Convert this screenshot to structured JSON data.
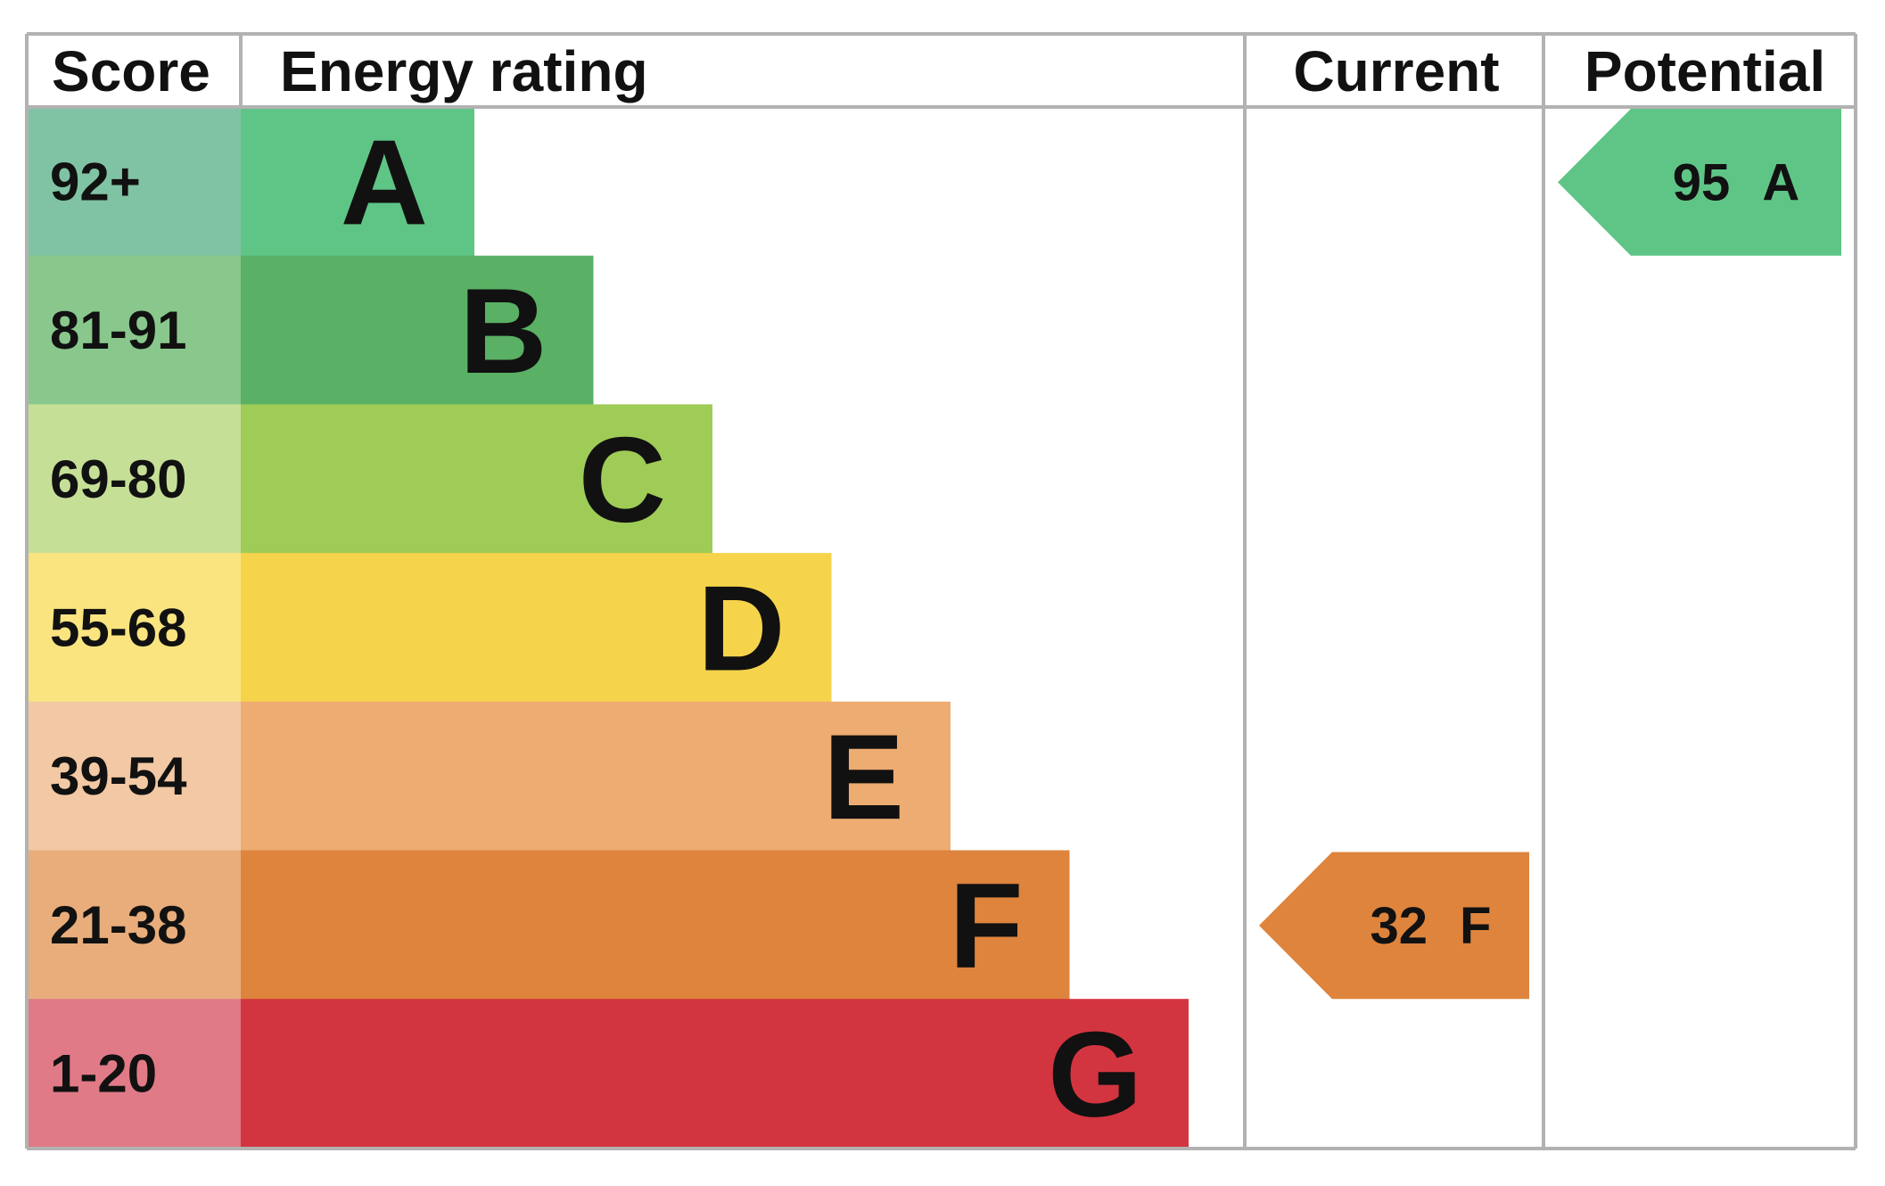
{
  "header": {
    "score": "Score",
    "energy_rating": "Energy rating",
    "current": "Current",
    "potential": "Potential"
  },
  "chart_data": {
    "type": "bar",
    "categories": [
      "A",
      "B",
      "C",
      "D",
      "E",
      "F",
      "G"
    ],
    "bands": [
      {
        "score": "92+",
        "letter": "A",
        "color": "#5fc587",
        "score_color": "#80c3a4"
      },
      {
        "score": "81-91",
        "letter": "B",
        "color": "#5ab064",
        "score_color": "#89c78d"
      },
      {
        "score": "69-80",
        "letter": "C",
        "color": "#9fcb57",
        "score_color": "#c6df97"
      },
      {
        "score": "55-68",
        "letter": "D",
        "color": "#f5d44b",
        "score_color": "#f9e480"
      },
      {
        "score": "39-54",
        "letter": "E",
        "color": "#edac71",
        "score_color": "#f2c9a4"
      },
      {
        "score": "21-38",
        "letter": "F",
        "color": "#de843d",
        "score_color": "#e8ad7b"
      },
      {
        "score": "1-20",
        "letter": "G",
        "color": "#d23540",
        "score_color": "#e07a86"
      }
    ],
    "current": {
      "value": 32,
      "rating": "F",
      "color": "#de843d"
    },
    "potential": {
      "value": 95,
      "rating": "A",
      "color": "#5fc587"
    }
  }
}
